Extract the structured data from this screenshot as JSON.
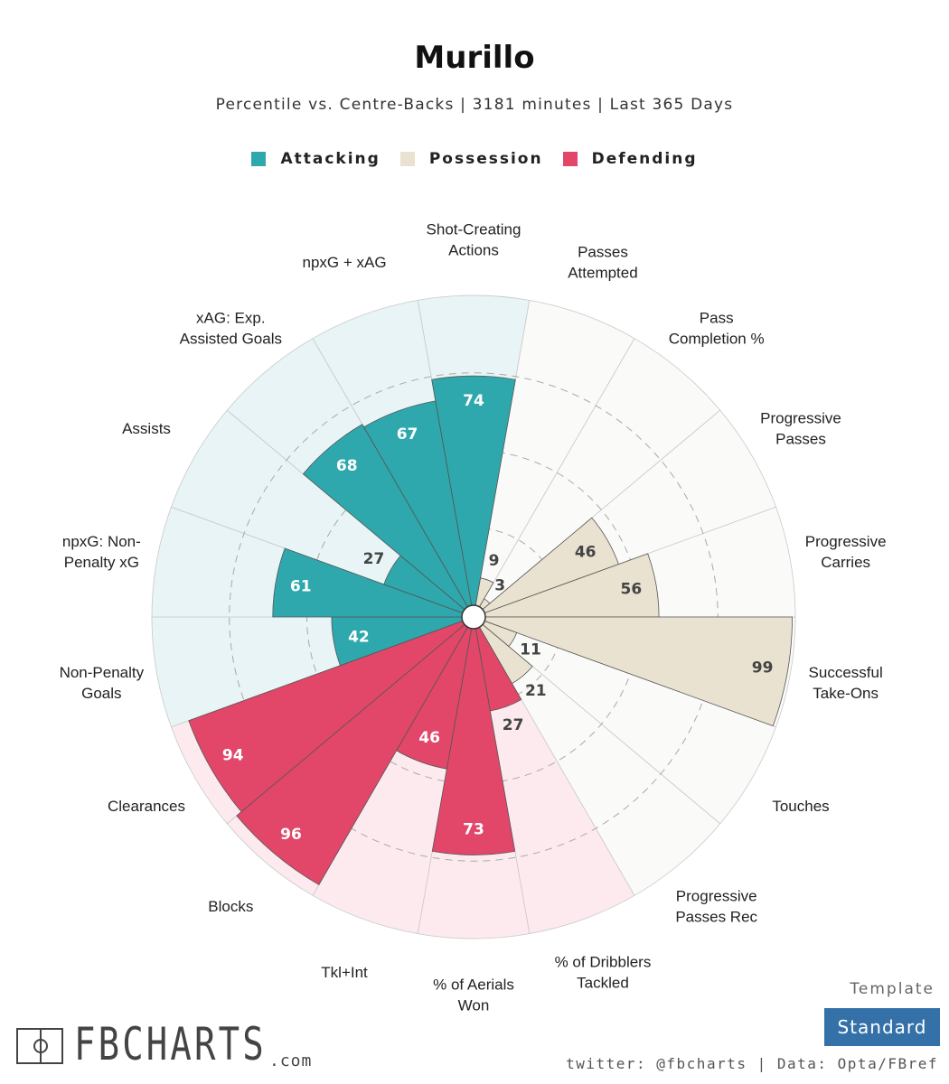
{
  "title": "Murillo",
  "subtitle": "Percentile vs. Centre-Backs | 3181 minutes | Last 365 Days",
  "legend": [
    {
      "label": "Attacking",
      "color": "#2ea8ad"
    },
    {
      "label": "Possession",
      "color": "#e9e2d0"
    },
    {
      "label": "Defending",
      "color": "#e24769"
    }
  ],
  "chart_data": {
    "type": "polar-bar",
    "range": [
      0,
      100
    ],
    "categories": [
      {
        "label": [
          "Shot-Creating",
          "Actions"
        ],
        "group": "Attacking",
        "value": 74
      },
      {
        "label": [
          "Passes",
          "Attempted"
        ],
        "group": "Possession",
        "value": 9
      },
      {
        "label": [
          "Pass",
          "Completion %"
        ],
        "group": "Possession",
        "value": 3
      },
      {
        "label": [
          "Progressive",
          "Passes"
        ],
        "group": "Possession",
        "value": 46
      },
      {
        "label": [
          "Progressive",
          "Carries"
        ],
        "group": "Possession",
        "value": 56
      },
      {
        "label": [
          "Successful",
          "Take-Ons"
        ],
        "group": "Possession",
        "value": 99
      },
      {
        "label": [
          "Touches"
        ],
        "group": "Possession",
        "value": 11
      },
      {
        "label": [
          "Progressive",
          "Passes Rec"
        ],
        "group": "Possession",
        "value": 21
      },
      {
        "label": [
          "% of Dribblers",
          "Tackled"
        ],
        "group": "Defending",
        "value": 27
      },
      {
        "label": [
          "% of Aerials",
          "Won"
        ],
        "group": "Defending",
        "value": 73
      },
      {
        "label": [
          "Tkl+Int"
        ],
        "group": "Defending",
        "value": 46
      },
      {
        "label": [
          "Blocks"
        ],
        "group": "Defending",
        "value": 96
      },
      {
        "label": [
          "Clearances"
        ],
        "group": "Defending",
        "value": 94
      },
      {
        "label": [
          "Non-Penalty",
          "Goals"
        ],
        "group": "Attacking",
        "value": 42
      },
      {
        "label": [
          "npxG: Non-",
          "Penalty xG"
        ],
        "group": "Attacking",
        "value": 61
      },
      {
        "label": [
          "Assists"
        ],
        "group": "Attacking",
        "value": 27
      },
      {
        "label": [
          "xAG: Exp.",
          "Assisted Goals"
        ],
        "group": "Attacking",
        "value": 68
      },
      {
        "label": [
          "npxG + xAG"
        ],
        "group": "Attacking",
        "value": 67
      }
    ],
    "colors": {
      "Attacking": {
        "bar": "#2ea8ad",
        "bg": "#e8f4f5",
        "text": "#ffffff"
      },
      "Possession": {
        "bar": "#e9e2d0",
        "bg": "#fafaf8",
        "text": "#444444"
      },
      "Defending": {
        "bar": "#e24769",
        "bg": "#fdeaee",
        "text": "#ffffff"
      }
    }
  },
  "branding": {
    "logo": "FBCHARTS",
    "logo_suffix": ".com",
    "template_label": "Template",
    "template_value": "Standard",
    "credits": "twitter: @fbcharts | Data: Opta/FBref"
  }
}
